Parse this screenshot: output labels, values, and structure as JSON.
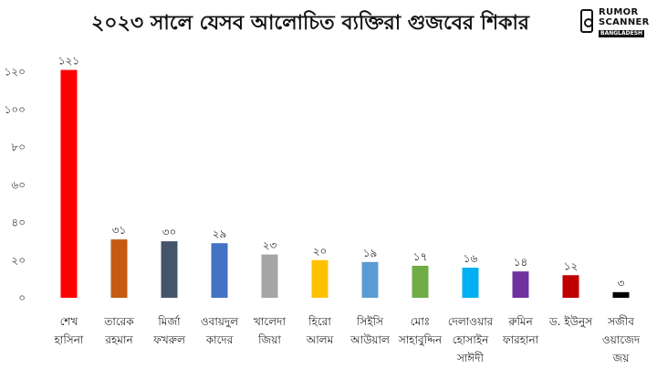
{
  "logo": {
    "line1": "RUMOR",
    "line2": "SCANNER",
    "line3": "BANGLADESH"
  },
  "chart_data": {
    "type": "bar",
    "title": "২০২৩ সালে যেসব আলোচিত ব্যক্তিরা গুজবের শিকার",
    "categories": [
      [
        "শেখ",
        "হাসিনা"
      ],
      [
        "তারেক",
        "রহমান"
      ],
      [
        "মির্জা",
        "ফখরুল"
      ],
      [
        "ওবায়দুল",
        "কাদের"
      ],
      [
        "খালেদা",
        "জিয়া"
      ],
      [
        "হিরো",
        "আলম"
      ],
      [
        "সিইসি",
        "আউয়াল"
      ],
      [
        "মোঃ",
        "সাহাবুদ্দিন"
      ],
      [
        "দেলাওয়ার",
        "হোসাইন",
        "সাঈদী"
      ],
      [
        "রুমিন",
        "ফারহানা"
      ],
      [
        "ড. ইউনুস"
      ],
      [
        "সজীব",
        "ওয়াজেদ",
        "জয়"
      ]
    ],
    "values": [
      121,
      31,
      30,
      29,
      23,
      20,
      19,
      17,
      16,
      14,
      12,
      3
    ],
    "value_labels": [
      "১২১",
      "৩১",
      "৩০",
      "২৯",
      "২৩",
      "২০",
      "১৯",
      "১৭",
      "১৬",
      "১৪",
      "১২",
      "৩"
    ],
    "colors": [
      "#ff0000",
      "#c55a11",
      "#44546a",
      "#4472c4",
      "#a5a5a5",
      "#ffc000",
      "#5b9bd5",
      "#70ad47",
      "#00b0f0",
      "#7030a0",
      "#c00000",
      "#000000"
    ],
    "yticks": [
      0,
      20,
      40,
      60,
      80,
      100,
      120
    ],
    "ytick_labels": [
      "০",
      "২০",
      "৪০",
      "৬০",
      "৮০",
      "১০০",
      "১২০"
    ],
    "ylim": [
      0,
      130
    ],
    "grid": false,
    "legend": "none"
  }
}
